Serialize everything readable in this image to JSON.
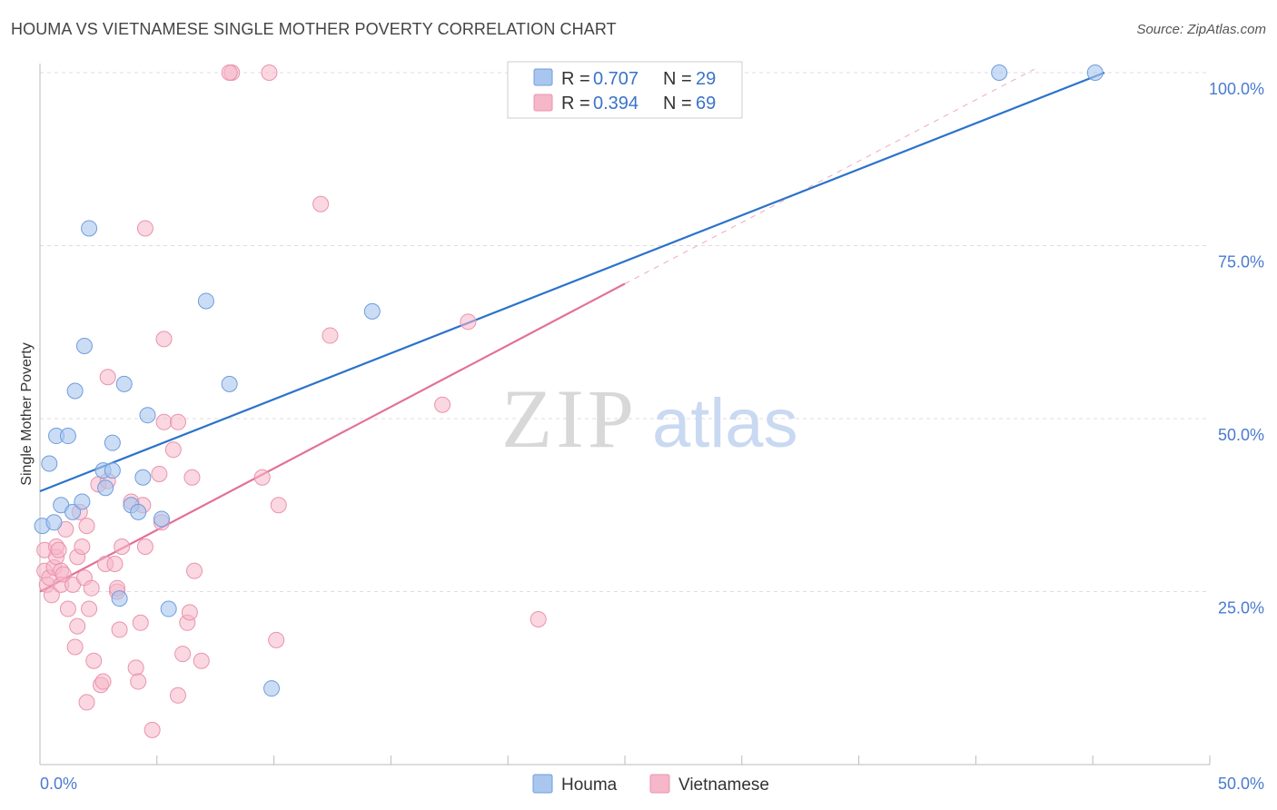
{
  "header": {
    "title": "HOUMA VS VIETNAMESE SINGLE MOTHER POVERTY CORRELATION CHART",
    "source": "Source: ZipAtlas.com"
  },
  "watermark": {
    "zip": "ZIP",
    "atlas": "atlas"
  },
  "colors": {
    "houma_fill": "#a9c6ef",
    "houma_stroke": "#6f9ddc",
    "houma_line": "#2c72cc",
    "viet_fill": "#f5b7c9",
    "viet_stroke": "#ea93ad",
    "viet_line": "#e3709a",
    "axis_label": "#4a7bd0",
    "grid": "#dddddd"
  },
  "legend": {
    "r_label": "R =",
    "n_label": "N =",
    "houma": {
      "r": "0.707",
      "n": "29"
    },
    "vietnamese": {
      "r": "0.394",
      "n": "69"
    }
  },
  "chart_data": {
    "type": "scatter",
    "title": "HOUMA VS VIETNAMESE SINGLE MOTHER POVERTY CORRELATION CHART",
    "xlabel": "",
    "ylabel": "Single Mother Poverty",
    "xlim": [
      0,
      50
    ],
    "ylim": [
      0,
      102
    ],
    "x_tick_labels": [
      "0.0%",
      "50.0%"
    ],
    "y_ticks": [
      25,
      50,
      75,
      100
    ],
    "y_tick_labels": [
      "25.0%",
      "50.0%",
      "75.0%",
      "100.0%"
    ],
    "grid": true,
    "series": [
      {
        "name": "Houma",
        "points": [
          [
            0.1,
            34.5
          ],
          [
            0.4,
            43.5
          ],
          [
            0.6,
            35.0
          ],
          [
            0.7,
            47.5
          ],
          [
            0.9,
            37.5
          ],
          [
            1.2,
            47.5
          ],
          [
            1.4,
            36.5
          ],
          [
            1.5,
            54.0
          ],
          [
            1.8,
            38.0
          ],
          [
            1.9,
            60.5
          ],
          [
            2.1,
            77.5
          ],
          [
            2.7,
            42.5
          ],
          [
            2.8,
            40.0
          ],
          [
            3.1,
            42.5
          ],
          [
            3.1,
            46.5
          ],
          [
            3.6,
            55.0
          ],
          [
            3.4,
            24.0
          ],
          [
            3.9,
            37.5
          ],
          [
            4.2,
            36.5
          ],
          [
            4.4,
            41.5
          ],
          [
            4.6,
            50.5
          ],
          [
            5.2,
            35.5
          ],
          [
            5.5,
            22.5
          ],
          [
            7.1,
            67.0
          ],
          [
            8.1,
            55.0
          ],
          [
            9.9,
            11.0
          ],
          [
            14.2,
            65.5
          ],
          [
            41.0,
            100.0
          ],
          [
            45.1,
            100.0
          ]
        ],
        "trend": {
          "x": [
            0,
            45.5
          ],
          "y": [
            39.5,
            100.0
          ]
        }
      },
      {
        "name": "Vietnamese",
        "points": [
          [
            0.2,
            31.0
          ],
          [
            0.2,
            28.0
          ],
          [
            0.3,
            26.0
          ],
          [
            0.4,
            27.0
          ],
          [
            0.5,
            24.5
          ],
          [
            0.6,
            28.5
          ],
          [
            0.7,
            30.0
          ],
          [
            0.7,
            31.5
          ],
          [
            0.8,
            31.0
          ],
          [
            0.9,
            28.0
          ],
          [
            0.9,
            26.0
          ],
          [
            1.0,
            27.5
          ],
          [
            1.1,
            34.0
          ],
          [
            1.2,
            22.5
          ],
          [
            1.4,
            26.0
          ],
          [
            1.5,
            17.0
          ],
          [
            1.6,
            30.0
          ],
          [
            1.6,
            20.0
          ],
          [
            1.7,
            36.5
          ],
          [
            1.8,
            31.5
          ],
          [
            1.9,
            27.0
          ],
          [
            2.0,
            34.5
          ],
          [
            2.0,
            9.0
          ],
          [
            2.1,
            22.5
          ],
          [
            2.2,
            25.5
          ],
          [
            2.3,
            15.0
          ],
          [
            2.5,
            40.5
          ],
          [
            2.6,
            11.5
          ],
          [
            2.7,
            12.0
          ],
          [
            2.8,
            29.0
          ],
          [
            2.9,
            41.0
          ],
          [
            2.9,
            56.0
          ],
          [
            3.2,
            29.0
          ],
          [
            3.3,
            25.0
          ],
          [
            3.3,
            25.5
          ],
          [
            3.4,
            19.5
          ],
          [
            3.5,
            31.5
          ],
          [
            3.9,
            38.0
          ],
          [
            4.1,
            14.0
          ],
          [
            4.2,
            12.0
          ],
          [
            4.3,
            20.5
          ],
          [
            4.4,
            37.5
          ],
          [
            4.5,
            31.5
          ],
          [
            4.5,
            77.5
          ],
          [
            4.8,
            5.0
          ],
          [
            5.1,
            42.0
          ],
          [
            5.2,
            35.0
          ],
          [
            5.3,
            49.5
          ],
          [
            5.3,
            61.5
          ],
          [
            5.7,
            45.5
          ],
          [
            5.9,
            49.5
          ],
          [
            5.9,
            10.0
          ],
          [
            6.1,
            16.0
          ],
          [
            6.3,
            20.5
          ],
          [
            6.4,
            22.0
          ],
          [
            6.5,
            41.5
          ],
          [
            6.6,
            28.0
          ],
          [
            6.9,
            15.0
          ],
          [
            8.2,
            100.0
          ],
          [
            9.8,
            100.0
          ],
          [
            9.5,
            41.5
          ],
          [
            10.1,
            18.0
          ],
          [
            10.2,
            37.5
          ],
          [
            12.0,
            81.0
          ],
          [
            12.4,
            62.0
          ],
          [
            17.2,
            52.0
          ],
          [
            18.3,
            64.0
          ],
          [
            21.3,
            21.0
          ],
          [
            8.1,
            100.0
          ]
        ],
        "trend": {
          "x": [
            0,
            25.0
          ],
          "y": [
            25.0,
            69.5
          ]
        },
        "trend_extension": {
          "x": [
            25.0,
            42.5
          ],
          "y": [
            69.5,
            100.5
          ]
        }
      }
    ]
  },
  "bottom_legend": {
    "houma": "Houma",
    "vietnamese": "Vietnamese"
  }
}
